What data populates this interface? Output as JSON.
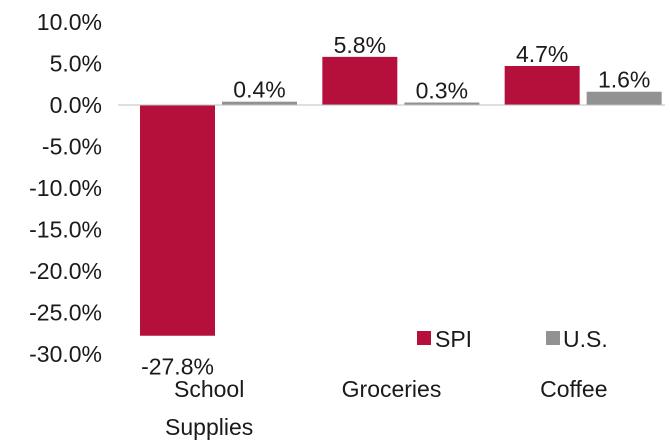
{
  "chart_data": {
    "type": "bar",
    "categories": [
      "School Supplies",
      "Groceries",
      "Coffee"
    ],
    "category_lines": [
      [
        "School",
        "Supplies"
      ],
      [
        "Groceries"
      ],
      [
        "Coffee"
      ]
    ],
    "series": [
      {
        "name": "SPI",
        "values": [
          -27.8,
          5.8,
          4.7
        ],
        "labels": [
          "-27.8%",
          "5.8%",
          "4.7%"
        ],
        "color": "#B5103C"
      },
      {
        "name": "U.S.",
        "values": [
          0.4,
          0.3,
          1.6
        ],
        "labels": [
          "0.4%",
          "0.3%",
          "1.6%"
        ],
        "color": "#929292"
      }
    ],
    "ylim": [
      -30,
      10
    ],
    "yticks": [
      10,
      5,
      0,
      -5,
      -10,
      -15,
      -20,
      -25,
      -30
    ],
    "ytick_labels": [
      "10.0%",
      "5.0%",
      "0.0%",
      "-5.0%",
      "-10.0%",
      "-15.0%",
      "-20.0%",
      "-25.0%",
      "-30.0%"
    ],
    "grid": false,
    "legend_position": "bottom-right",
    "baseline_color": "#bfbfbf"
  }
}
